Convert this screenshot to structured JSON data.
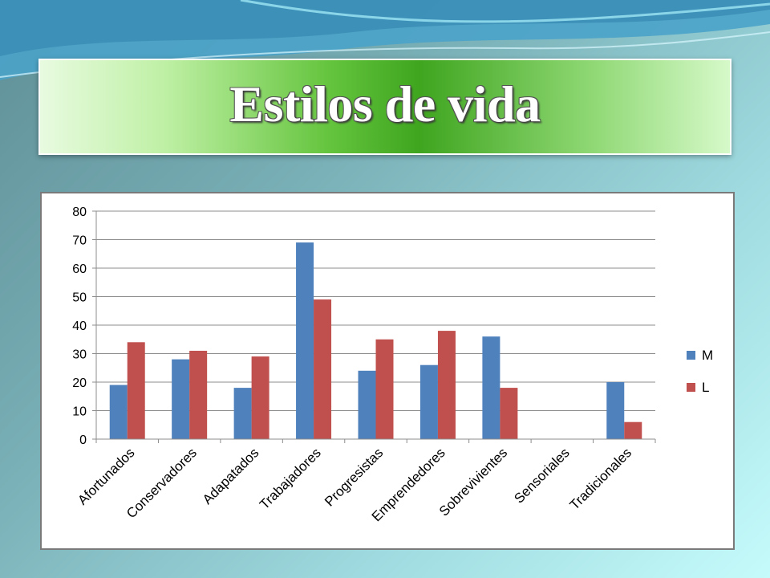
{
  "slide": {
    "title": "Estilos de vida"
  },
  "colors": {
    "series_M": "#4f81bd",
    "series_L": "#c0504d",
    "title_green": "#3fa51f",
    "gridline": "#8c8c8c"
  },
  "chart_data": {
    "type": "bar",
    "title": "",
    "xlabel": "",
    "ylabel": "",
    "ylim": [
      0,
      80
    ],
    "yticks": [
      0,
      10,
      20,
      30,
      40,
      50,
      60,
      70,
      80
    ],
    "grid": true,
    "legend_position": "right",
    "categories": [
      "Afortunados",
      "Conservadores",
      "Adapatados",
      "Trabajadores",
      "Progresistas",
      "Emprendedores",
      "Sobrevivientes",
      "Sensoriales",
      "Tradicionales"
    ],
    "series": [
      {
        "name": "M",
        "values": [
          19,
          28,
          18,
          69,
          24,
          26,
          36,
          0,
          20
        ]
      },
      {
        "name": "L",
        "values": [
          34,
          31,
          29,
          49,
          35,
          38,
          18,
          0,
          6
        ]
      }
    ]
  }
}
